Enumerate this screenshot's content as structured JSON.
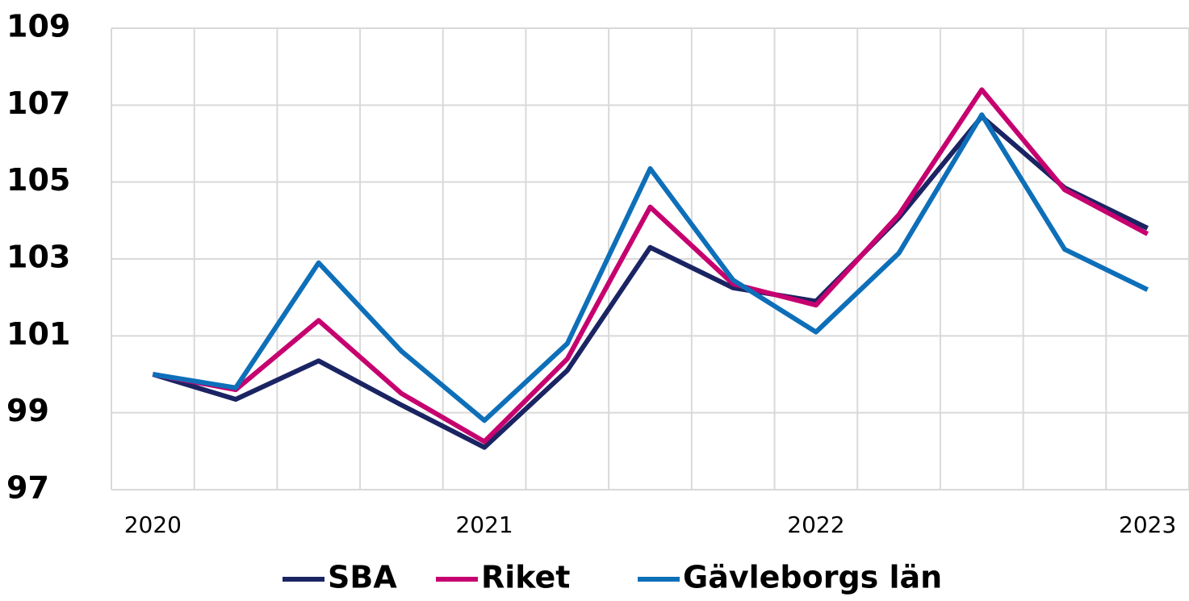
{
  "chart_data": {
    "type": "line",
    "categories": [
      "2020",
      null,
      null,
      null,
      "2021",
      null,
      null,
      null,
      "2022",
      null,
      null,
      null,
      "2023"
    ],
    "series": [
      {
        "name": "SBA",
        "color": "#1b2463",
        "values": [
          100,
          99.35,
          100.35,
          99.2,
          98.1,
          100.1,
          103.3,
          102.25,
          101.9,
          104.07,
          106.7,
          104.85,
          103.8
        ]
      },
      {
        "name": "Riket",
        "color": "#c6006f",
        "values": [
          100,
          99.6,
          101.4,
          99.5,
          98.25,
          100.4,
          104.35,
          102.35,
          101.8,
          104.15,
          107.4,
          104.8,
          103.65
        ]
      },
      {
        "name": "Gävleborgs län",
        "color": "#0e6fb9",
        "values": [
          100,
          99.65,
          102.9,
          100.6,
          98.8,
          100.8,
          105.35,
          102.45,
          101.1,
          103.15,
          106.75,
          103.25,
          102.2
        ]
      }
    ],
    "ylim": [
      97,
      109
    ],
    "yticks": [
      97,
      99,
      101,
      103,
      105,
      107,
      109
    ],
    "grid": true,
    "legend": "bottom"
  }
}
